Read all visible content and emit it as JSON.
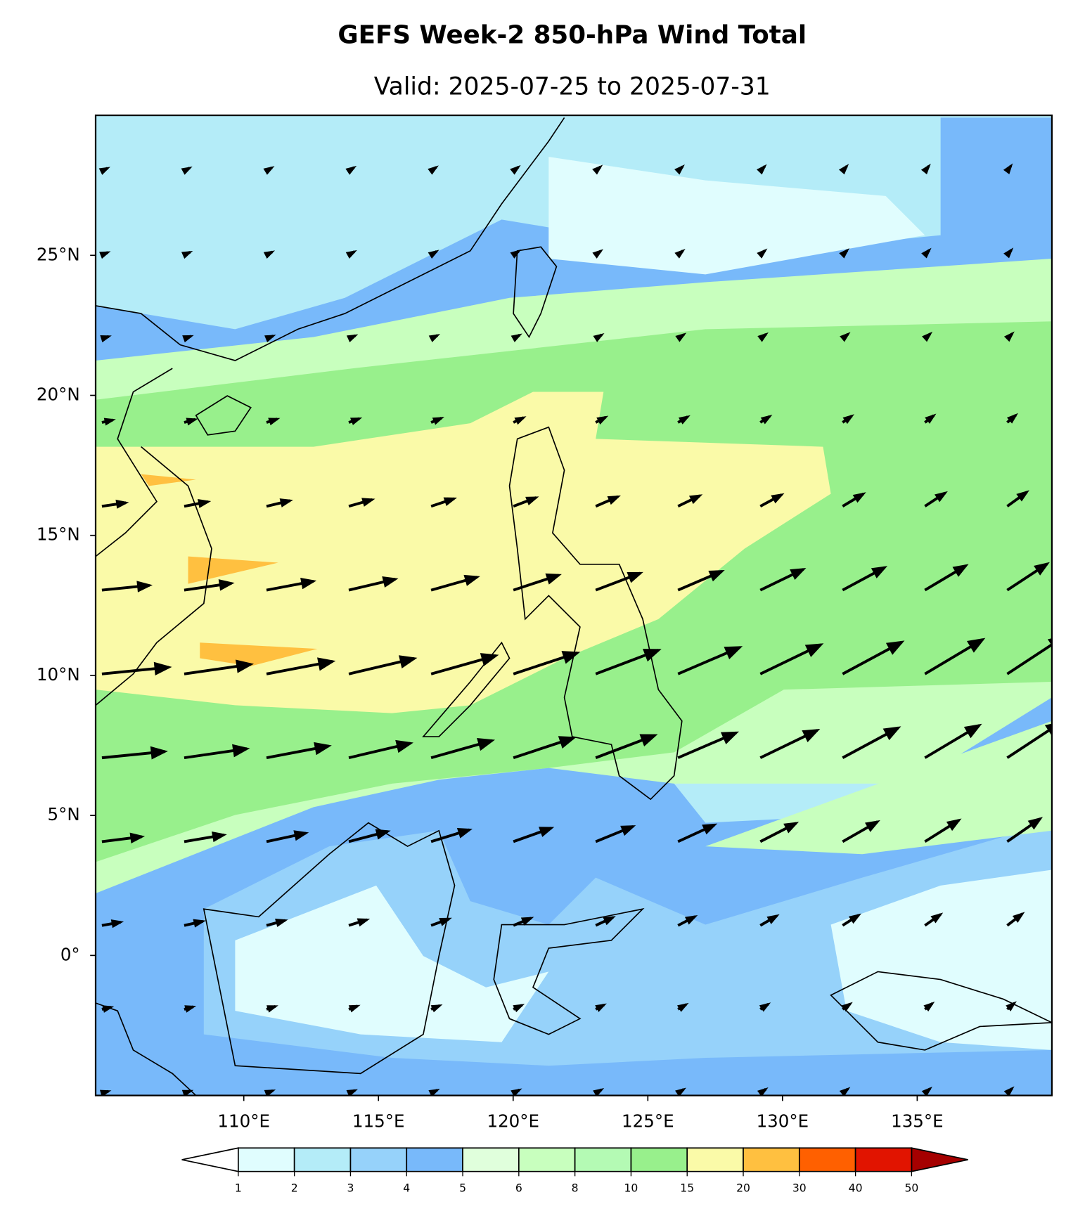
{
  "chart_data": {
    "type": "contour-map",
    "title": "GEFS Week-2 850-hPa Wind Total",
    "subtitle": "Valid: 2025-07-25 to 2025-07-31",
    "xlim": [
      104.5,
      140
    ],
    "ylim": [
      -5,
      30
    ],
    "xticks": [
      {
        "value": 110,
        "label": "110°E"
      },
      {
        "value": 115,
        "label": "115°E"
      },
      {
        "value": 120,
        "label": "120°E"
      },
      {
        "value": 125,
        "label": "125°E"
      },
      {
        "value": 130,
        "label": "130°E"
      },
      {
        "value": 135,
        "label": "135°E"
      }
    ],
    "yticks": [
      {
        "value": 0,
        "label": "0°"
      },
      {
        "value": 5,
        "label": "5°N"
      },
      {
        "value": 10,
        "label": "10°N"
      },
      {
        "value": 15,
        "label": "15°N"
      },
      {
        "value": 20,
        "label": "20°N"
      },
      {
        "value": 25,
        "label": "25°N"
      }
    ],
    "colorbar": {
      "levels": [
        1,
        2,
        3,
        4,
        5,
        6,
        8,
        10,
        15,
        20,
        30,
        40,
        50
      ],
      "colors": [
        "#e0fdfe",
        "#b4ecf8",
        "#96d2fa",
        "#78b9fa",
        "#e0ffdc",
        "#c8ffbe",
        "#b4fab4",
        "#98f08c",
        "#fafaa8",
        "#ffc040",
        "#ff6000",
        "#e11400"
      ],
      "under_color": "#ffffff",
      "over_color": "#a50000"
    }
  }
}
